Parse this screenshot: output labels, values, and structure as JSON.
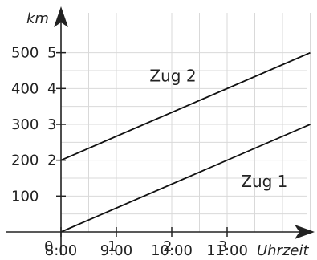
{
  "chart_data": {
    "type": "line",
    "title": "",
    "xlabel": "Uhrzeit",
    "ylabel": "km",
    "grid": true,
    "x_ticks": [
      {
        "value": 8,
        "label": "8:00"
      },
      {
        "value": 9,
        "label": "9:00"
      },
      {
        "value": 10,
        "label": "10:00"
      },
      {
        "value": 11,
        "label": "11:00"
      }
    ],
    "x_ticks_alt": [
      {
        "value": 8,
        "label": "0"
      },
      {
        "value": 9,
        "label": "1"
      },
      {
        "value": 10,
        "label": "2"
      },
      {
        "value": 11,
        "label": "3"
      }
    ],
    "y_ticks": [
      {
        "value": 100,
        "label": "100"
      },
      {
        "value": 200,
        "label": "200"
      },
      {
        "value": 300,
        "label": "300"
      },
      {
        "value": 400,
        "label": "400"
      },
      {
        "value": 500,
        "label": "500"
      }
    ],
    "y_ticks_alt": [
      {
        "value": 200,
        "label": "2"
      },
      {
        "value": 300,
        "label": "3"
      },
      {
        "value": 400,
        "label": "4"
      },
      {
        "value": 500,
        "label": "5"
      }
    ],
    "xlim": [
      8,
      12.5
    ],
    "ylim": [
      0,
      530
    ],
    "series": [
      {
        "name": "Zug 1",
        "x": [
          8,
          12.5
        ],
        "y": [
          0,
          300
        ],
        "label_at": [
          11.25,
          125
        ]
      },
      {
        "name": "Zug 2",
        "x": [
          8,
          12.5
        ],
        "y": [
          200,
          500
        ],
        "label_at": [
          9.6,
          420
        ]
      }
    ],
    "colors": {
      "axis": "#222222",
      "grid": "#d9d9d9",
      "line": "#111111"
    }
  }
}
